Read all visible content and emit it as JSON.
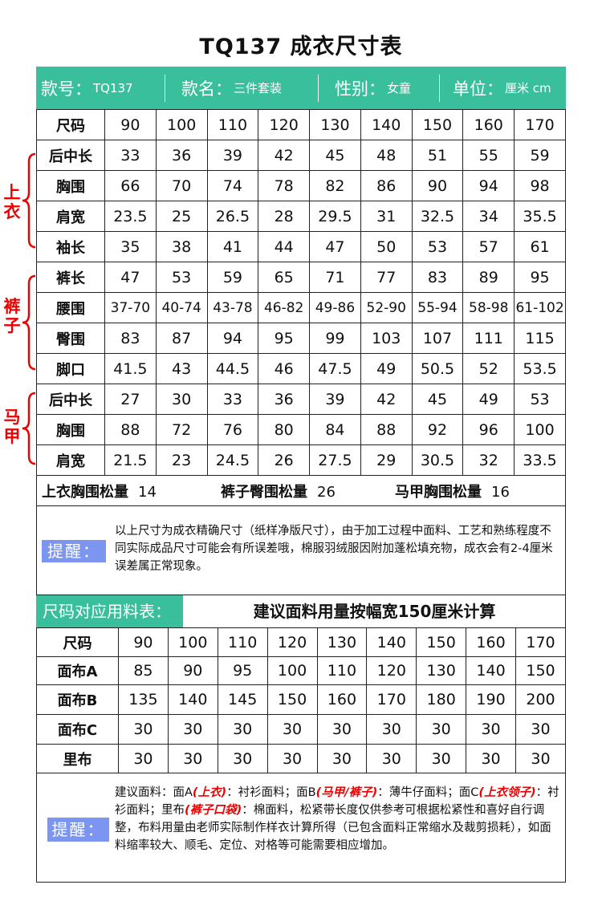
{
  "title": "TQ137 成衣尺寸表",
  "header": {
    "style_no_label": "款号：",
    "style_no": "TQ137",
    "name_label": "款名：",
    "name": "三件套装",
    "gender_label": "性别：",
    "gender": "女童",
    "unit_label": "单位：",
    "unit": "厘米 cm"
  },
  "size_table": {
    "sizes_label": "尺码",
    "sizes": [
      "90",
      "100",
      "110",
      "120",
      "130",
      "140",
      "150",
      "160",
      "170"
    ],
    "groups": [
      {
        "label": "上衣",
        "rows": [
          {
            "name": "后中长",
            "values": [
              "33",
              "36",
              "39",
              "42",
              "45",
              "48",
              "51",
              "55",
              "59"
            ]
          },
          {
            "name": "胸围",
            "values": [
              "66",
              "70",
              "74",
              "78",
              "82",
              "86",
              "90",
              "94",
              "98"
            ]
          },
          {
            "name": "肩宽",
            "values": [
              "23.5",
              "25",
              "26.5",
              "28",
              "29.5",
              "31",
              "32.5",
              "34",
              "35.5"
            ]
          },
          {
            "name": "袖长",
            "values": [
              "35",
              "38",
              "41",
              "44",
              "47",
              "50",
              "53",
              "57",
              "61"
            ]
          }
        ]
      },
      {
        "label": "裤子",
        "rows": [
          {
            "name": "裤长",
            "values": [
              "47",
              "53",
              "59",
              "65",
              "71",
              "77",
              "83",
              "89",
              "95"
            ]
          },
          {
            "name": "腰围",
            "values": [
              "37-70",
              "40-74",
              "43-78",
              "46-82",
              "49-86",
              "52-90",
              "55-94",
              "58-98",
              "61-102"
            ]
          },
          {
            "name": "臀围",
            "values": [
              "83",
              "87",
              "94",
              "95",
              "99",
              "103",
              "107",
              "111",
              "115"
            ]
          },
          {
            "name": "脚口",
            "values": [
              "41.5",
              "43",
              "44.5",
              "46",
              "47.5",
              "49",
              "50.5",
              "52",
              "53.5"
            ]
          }
        ]
      },
      {
        "label": "马甲",
        "rows": [
          {
            "name": "后中长",
            "values": [
              "27",
              "30",
              "33",
              "36",
              "39",
              "42",
              "45",
              "49",
              "53"
            ]
          },
          {
            "name": "胸围",
            "values": [
              "88",
              "72",
              "76",
              "80",
              "84",
              "88",
              "92",
              "96",
              "100"
            ]
          },
          {
            "name": "肩宽",
            "values": [
              "21.5",
              "23",
              "24.5",
              "26",
              "27.5",
              "29",
              "30.5",
              "32",
              "33.5"
            ]
          }
        ]
      }
    ]
  },
  "ease": [
    {
      "label": "上衣胸围松量",
      "value": "14"
    },
    {
      "label": "裤子臀围松量",
      "value": "26"
    },
    {
      "label": "马甲胸围松量",
      "value": "16"
    }
  ],
  "note1": {
    "tag": "提醒：",
    "text": "以上尺寸为成衣精确尺寸（纸样净版尺寸），由于加工过程中面料、工艺和熟练程度不同实际成品尺寸可能会有所误差哦，棉服羽绒服因附加蓬松填充物，成衣会有2-4厘米误差属正常现象。"
  },
  "fabric": {
    "label": "尺码对应用料表：",
    "title": "建议面料用量按幅宽150厘米计算",
    "sizes_label": "尺码",
    "sizes": [
      "90",
      "100",
      "110",
      "120",
      "130",
      "140",
      "150",
      "160",
      "170"
    ],
    "rows": [
      {
        "name": "面布A",
        "values": [
          "85",
          "90",
          "95",
          "100",
          "110",
          "120",
          "130",
          "140",
          "150"
        ]
      },
      {
        "name": "面布B",
        "values": [
          "135",
          "140",
          "145",
          "150",
          "160",
          "170",
          "180",
          "190",
          "200"
        ]
      },
      {
        "name": "面布C",
        "values": [
          "30",
          "30",
          "30",
          "30",
          "30",
          "30",
          "30",
          "30",
          "30"
        ]
      },
      {
        "name": "里布",
        "values": [
          "30",
          "30",
          "30",
          "30",
          "30",
          "30",
          "30",
          "30",
          "30"
        ]
      }
    ]
  },
  "note2": {
    "tag": "提醒：",
    "parts": [
      {
        "t": "建议面料：面A",
        "s": "n"
      },
      {
        "t": "(上衣)",
        "s": "r"
      },
      {
        "t": "：衬衫面料；面B",
        "s": "n"
      },
      {
        "t": "(马甲/裤子)",
        "s": "r"
      },
      {
        "t": "：薄牛仔面料；面C",
        "s": "n"
      },
      {
        "t": "(上衣领子)",
        "s": "r"
      },
      {
        "t": "：衬衫面料；里布",
        "s": "n"
      },
      {
        "t": "(裤子口袋)",
        "s": "r"
      },
      {
        "t": "：棉面料，松紧带长度仅供参考可根据松紧性和喜好自行调整，布料用量由老师实际制作样衣计算所得（已包含面料正常缩水及裁剪损耗），如面料缩率较大、顺毛、定位、对格等可能需要相应增加。",
        "s": "n"
      }
    ]
  },
  "colors": {
    "accent": "#3abf9d",
    "tip": "#7b95f0",
    "red": "#e00000"
  }
}
